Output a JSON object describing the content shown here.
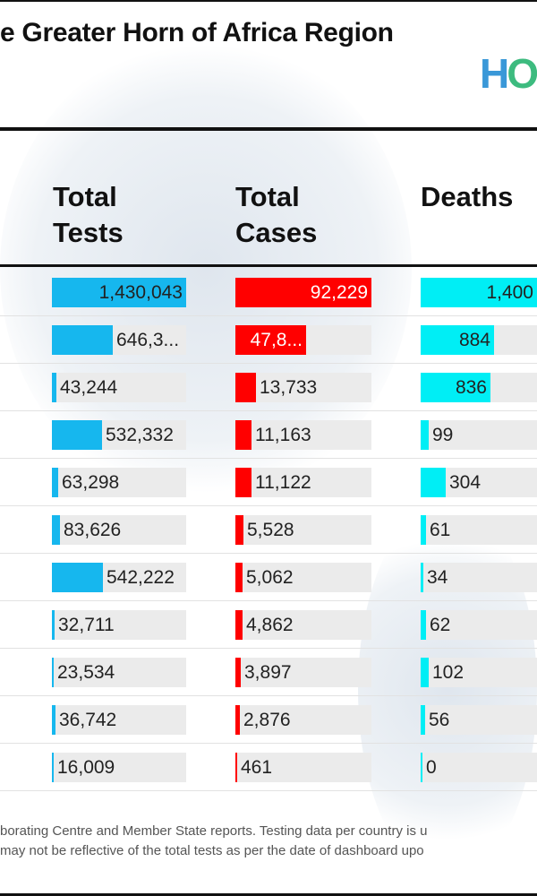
{
  "header": {
    "title": "e Greater Horn of Africa Region",
    "logo_text": "HO"
  },
  "columns": [
    {
      "line1": "Total",
      "line2": "Tests"
    },
    {
      "line1": "Total",
      "line2": "Cases"
    },
    {
      "line1": "",
      "line2": "Deaths"
    }
  ],
  "colors": {
    "tests": "#16b7ee",
    "cases": "#ff0000",
    "deaths": "#00eef5"
  },
  "rows": [
    {
      "tests": {
        "label": "1,430,043",
        "fraction": 1.0
      },
      "cases": {
        "label": "92,229",
        "fraction": 1.0
      },
      "deaths": {
        "label": "1,400",
        "fraction": 1.0
      }
    },
    {
      "tests": {
        "label": "646,3...",
        "fraction": 0.452
      },
      "cases": {
        "label": "47,8...",
        "fraction": 0.519
      },
      "deaths": {
        "label": "884",
        "fraction": 0.631
      }
    },
    {
      "tests": {
        "label": "43,244",
        "fraction": 0.03
      },
      "cases": {
        "label": "13,733",
        "fraction": 0.149
      },
      "deaths": {
        "label": "836",
        "fraction": 0.597
      }
    },
    {
      "tests": {
        "label": "532,332",
        "fraction": 0.372
      },
      "cases": {
        "label": "11,163",
        "fraction": 0.121
      },
      "deaths": {
        "label": "99",
        "fraction": 0.071
      }
    },
    {
      "tests": {
        "label": "63,298",
        "fraction": 0.044
      },
      "cases": {
        "label": "11,122",
        "fraction": 0.121
      },
      "deaths": {
        "label": "304",
        "fraction": 0.217
      }
    },
    {
      "tests": {
        "label": "83,626",
        "fraction": 0.058
      },
      "cases": {
        "label": "5,528",
        "fraction": 0.06
      },
      "deaths": {
        "label": "61",
        "fraction": 0.044
      }
    },
    {
      "tests": {
        "label": "542,222",
        "fraction": 0.379
      },
      "cases": {
        "label": "5,062",
        "fraction": 0.055
      },
      "deaths": {
        "label": "34",
        "fraction": 0.024
      }
    },
    {
      "tests": {
        "label": "32,711",
        "fraction": 0.023
      },
      "cases": {
        "label": "4,862",
        "fraction": 0.053
      },
      "deaths": {
        "label": "62",
        "fraction": 0.044
      }
    },
    {
      "tests": {
        "label": "23,534",
        "fraction": 0.016
      },
      "cases": {
        "label": "3,897",
        "fraction": 0.042
      },
      "deaths": {
        "label": "102",
        "fraction": 0.073
      }
    },
    {
      "tests": {
        "label": "36,742",
        "fraction": 0.026
      },
      "cases": {
        "label": "2,876",
        "fraction": 0.031
      },
      "deaths": {
        "label": "56",
        "fraction": 0.04
      }
    },
    {
      "tests": {
        "label": "16,009",
        "fraction": 0.011
      },
      "cases": {
        "label": "461",
        "fraction": 0.005
      },
      "deaths": {
        "label": "0",
        "fraction": 0.0
      }
    }
  ],
  "footer": {
    "line1": "borating Centre and Member State reports. Testing data per country is u",
    "line2": "may not be reflective of the total tests as per the date of dashboard upo"
  }
}
